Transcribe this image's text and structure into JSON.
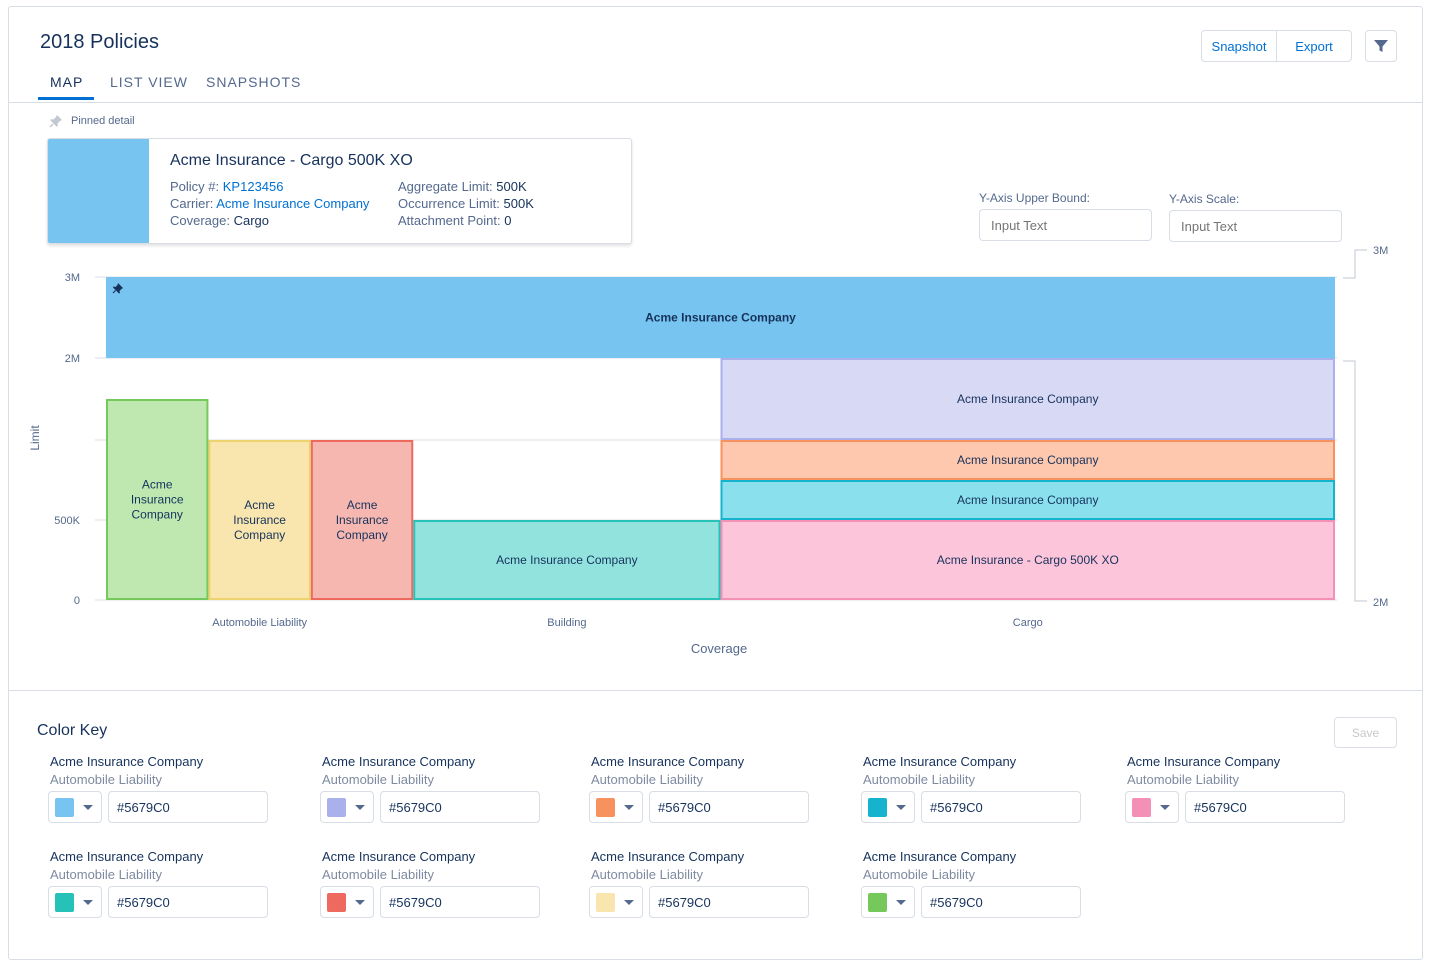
{
  "header": {
    "title": "2018 Policies",
    "tabs": [
      {
        "label": "MAP",
        "active": true
      },
      {
        "label": "LIST VIEW",
        "active": false
      },
      {
        "label": "SNAPSHOTS",
        "active": false
      }
    ],
    "actions": {
      "snapshot_label": "Snapshot",
      "export_label": "Export",
      "filter_icon": "filter-icon"
    }
  },
  "pinned": {
    "label": "Pinned detail",
    "icon": "pin-icon",
    "card": {
      "color": "#76c4ef",
      "title": "Acme Insurance - Cargo 500K XO",
      "policy_label": "Policy #:",
      "policy_value": "KP123456",
      "carrier_label": "Carrier:",
      "carrier_value": "Acme Insurance Company",
      "coverage_label": "Coverage:",
      "coverage_value": "Cargo",
      "aggregate_label": "Aggregate Limit:",
      "aggregate_value": "500K",
      "occurrence_label": "Occurrence Limit:",
      "occurrence_value": "500K",
      "attachment_label": "Attachment Point:",
      "attachment_value": "0"
    }
  },
  "controls": {
    "upper_bound_label": "Y-Axis Upper Bound:",
    "upper_bound_placeholder": "Input Text",
    "scale_label": "Y-Axis Scale:",
    "scale_placeholder": "Input Text"
  },
  "chart_data": {
    "type": "bar",
    "subtype": "stacked-tower",
    "xlabel": "Coverage",
    "ylabel": "Limit",
    "y_ticks": [
      "0",
      "500K",
      "2M",
      "3M"
    ],
    "categories": [
      "Automobile Liability",
      "Building",
      "Cargo"
    ],
    "break_indicator": {
      "upper": "3M",
      "lower": "2M"
    },
    "segments": [
      {
        "label": "Acme Insurance Company",
        "category": "All",
        "band_from": 3,
        "band_to": 4,
        "cols": [
          0,
          12
        ],
        "fill": "#76c4ef",
        "stroke": "#76c4ef",
        "pinned": true
      },
      {
        "label": "Acme Insurance Company",
        "category": "Automobile Liability",
        "band_from": 0,
        "band_to": 2.5,
        "cols": [
          0,
          1
        ],
        "fill": "#bfe8b1",
        "stroke": "#75c95b",
        "wrap": true
      },
      {
        "label": "Acme Insurance Company",
        "category": "Automobile Liability",
        "band_from": 0,
        "band_to": 2,
        "cols": [
          1,
          2
        ],
        "fill": "#f8e6ae",
        "stroke": "#ecd36e",
        "wrap": true
      },
      {
        "label": "Acme Insurance Company",
        "category": "Automobile Liability",
        "band_from": 0,
        "band_to": 2,
        "cols": [
          2,
          3
        ],
        "fill": "#f6b7b1",
        "stroke": "#ee6a5e",
        "wrap": true
      },
      {
        "label": "Acme Insurance Company",
        "category": "Building",
        "band_from": 0,
        "band_to": 1,
        "cols": [
          3,
          6
        ],
        "fill": "#92e3de",
        "stroke": "#26c2b8"
      },
      {
        "label": "Acme Insurance - Cargo 500K XO",
        "category": "Cargo",
        "band_from": 0,
        "band_to": 1,
        "cols": [
          6,
          12
        ],
        "fill": "#fcc5da",
        "stroke": "#f48fb6"
      },
      {
        "label": "Acme Insurance Company",
        "category": "Cargo",
        "band_from": 1,
        "band_to": 1.5,
        "cols": [
          6,
          12
        ],
        "fill": "#8ae0ec",
        "stroke": "#16b3cf"
      },
      {
        "label": "Acme Insurance Company",
        "category": "Cargo",
        "band_from": 1.5,
        "band_to": 2,
        "cols": [
          6,
          12
        ],
        "fill": "#fdc8ae",
        "stroke": "#f7925e"
      },
      {
        "label": "Acme Insurance Company",
        "category": "Cargo",
        "band_from": 2,
        "band_to": 3,
        "cols": [
          6,
          12
        ],
        "fill": "#d8d9f5",
        "stroke": "#a9b0ec"
      }
    ]
  },
  "color_key": {
    "title": "Color Key",
    "save_label": "Save",
    "items": [
      {
        "name": "Acme Insurance Company",
        "coverage": "Automobile Liability",
        "swatch": "#76c4ef",
        "hex": "#5679C0"
      },
      {
        "name": "Acme Insurance Company",
        "coverage": "Automobile Liability",
        "swatch": "#a9b0ec",
        "hex": "#5679C0"
      },
      {
        "name": "Acme Insurance Company",
        "coverage": "Automobile Liability",
        "swatch": "#f7925e",
        "hex": "#5679C0"
      },
      {
        "name": "Acme Insurance Company",
        "coverage": "Automobile Liability",
        "swatch": "#16b3cf",
        "hex": "#5679C0"
      },
      {
        "name": "Acme Insurance Company",
        "coverage": "Automobile Liability",
        "swatch": "#f48fb6",
        "hex": "#5679C0"
      },
      {
        "name": "Acme Insurance Company",
        "coverage": "Automobile Liability",
        "swatch": "#26c2b8",
        "hex": "#5679C0"
      },
      {
        "name": "Acme Insurance Company",
        "coverage": "Automobile Liability",
        "swatch": "#ee6a5e",
        "hex": "#5679C0"
      },
      {
        "name": "Acme Insurance Company",
        "coverage": "Automobile Liability",
        "swatch": "#f8e6ae",
        "hex": "#5679C0"
      },
      {
        "name": "Acme Insurance Company",
        "coverage": "Automobile Liability",
        "swatch": "#75c95b",
        "hex": "#5679C0"
      }
    ]
  }
}
